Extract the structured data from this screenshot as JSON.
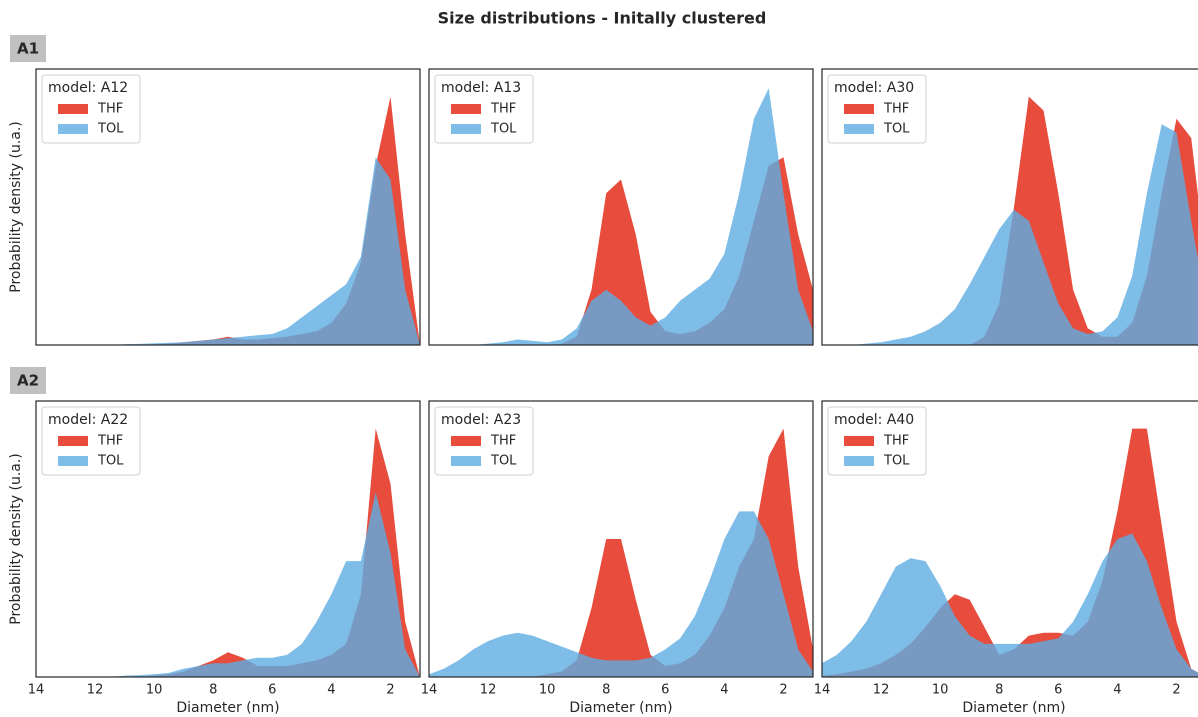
{
  "title": "Size distributions - Initally clustered",
  "groups": [
    "A1",
    "A2"
  ],
  "chart_data": [
    {
      "type": "area",
      "title": "model: A12",
      "ylabel": "Probability density (u.a.)",
      "xlim": [
        14,
        1
      ],
      "ylim": [
        0,
        1
      ],
      "x": [
        14,
        13.5,
        13,
        12.5,
        12,
        11.5,
        11,
        10.5,
        10,
        9.5,
        9,
        8.5,
        8,
        7.5,
        7,
        6.5,
        6,
        5.5,
        5,
        4.5,
        4,
        3.5,
        3,
        2.5,
        2,
        1.5,
        1
      ],
      "series": [
        {
          "name": "THF",
          "color": "#e74c3c",
          "values": [
            0,
            0,
            0,
            0,
            0,
            0,
            0,
            0,
            0.002,
            0.005,
            0.01,
            0.015,
            0.02,
            0.03,
            0.02,
            0.02,
            0.025,
            0.03,
            0.04,
            0.05,
            0.08,
            0.15,
            0.3,
            0.65,
            0.9,
            0.4,
            0
          ]
        },
        {
          "name": "TOL",
          "color": "#5dade2",
          "values": [
            0,
            0,
            0,
            0,
            0,
            0,
            0.003,
            0.004,
            0.006,
            0.008,
            0.01,
            0.015,
            0.02,
            0.025,
            0.03,
            0.035,
            0.04,
            0.06,
            0.1,
            0.14,
            0.18,
            0.22,
            0.32,
            0.68,
            0.6,
            0.2,
            0
          ]
        }
      ]
    },
    {
      "type": "area",
      "title": "model: A13",
      "xlim": [
        14,
        1
      ],
      "ylim": [
        0,
        1
      ],
      "x": [
        14,
        13.5,
        13,
        12.5,
        12,
        11.5,
        11,
        10.5,
        10,
        9.5,
        9,
        8.5,
        8,
        7.5,
        7,
        6.5,
        6,
        5.5,
        5,
        4.5,
        4,
        3.5,
        3,
        2.5,
        2,
        1.5,
        1
      ],
      "series": [
        {
          "name": "THF",
          "color": "#e74c3c",
          "values": [
            0,
            0,
            0,
            0,
            0,
            0,
            0,
            0,
            0,
            0.005,
            0.03,
            0.2,
            0.55,
            0.6,
            0.4,
            0.12,
            0.05,
            0.04,
            0.05,
            0.08,
            0.13,
            0.25,
            0.45,
            0.65,
            0.68,
            0.4,
            0.2
          ]
        },
        {
          "name": "TOL",
          "color": "#5dade2",
          "values": [
            0,
            0,
            0,
            0,
            0.005,
            0.01,
            0.02,
            0.015,
            0.01,
            0.02,
            0.06,
            0.16,
            0.2,
            0.16,
            0.1,
            0.07,
            0.1,
            0.16,
            0.2,
            0.24,
            0.33,
            0.55,
            0.82,
            0.93,
            0.55,
            0.2,
            0.05
          ]
        }
      ]
    },
    {
      "type": "area",
      "title": "model: A30",
      "xlim": [
        14,
        1
      ],
      "ylim": [
        0,
        1
      ],
      "x": [
        14,
        13.5,
        13,
        12.5,
        12,
        11.5,
        11,
        10.5,
        10,
        9.5,
        9,
        8.5,
        8,
        7.5,
        7,
        6.5,
        6,
        5.5,
        5,
        4.5,
        4,
        3.5,
        3,
        2.5,
        2,
        1.5,
        1
      ],
      "series": [
        {
          "name": "THF",
          "color": "#e74c3c",
          "values": [
            0,
            0,
            0,
            0,
            0,
            0,
            0,
            0,
            0,
            0,
            0,
            0.03,
            0.15,
            0.5,
            0.9,
            0.85,
            0.55,
            0.2,
            0.06,
            0.03,
            0.03,
            0.08,
            0.25,
            0.55,
            0.82,
            0.75,
            0.3
          ]
        },
        {
          "name": "TOL",
          "color": "#5dade2",
          "values": [
            0,
            0,
            0,
            0.005,
            0.01,
            0.02,
            0.03,
            0.05,
            0.08,
            0.13,
            0.22,
            0.32,
            0.42,
            0.49,
            0.45,
            0.3,
            0.15,
            0.06,
            0.04,
            0.05,
            0.1,
            0.25,
            0.55,
            0.8,
            0.77,
            0.45,
            0.15
          ]
        }
      ]
    },
    {
      "type": "area",
      "title": "model: A22",
      "ylabel": "Probability density (u.a.)",
      "xlabel": "Diameter (nm)",
      "xlim": [
        14,
        1
      ],
      "ylim": [
        0,
        1
      ],
      "xticks": [
        14,
        12,
        10,
        8,
        6,
        4,
        2
      ],
      "x": [
        14,
        13.5,
        13,
        12.5,
        12,
        11.5,
        11,
        10.5,
        10,
        9.5,
        9,
        8.5,
        8,
        7.5,
        7,
        6.5,
        6,
        5.5,
        5,
        4.5,
        4,
        3.5,
        3,
        2.5,
        2,
        1.5,
        1
      ],
      "series": [
        {
          "name": "THF",
          "color": "#e74c3c",
          "values": [
            0,
            0,
            0,
            0,
            0,
            0,
            0,
            0,
            0.005,
            0.01,
            0.02,
            0.04,
            0.06,
            0.09,
            0.07,
            0.04,
            0.04,
            0.04,
            0.05,
            0.06,
            0.08,
            0.12,
            0.3,
            0.9,
            0.7,
            0.2,
            0
          ]
        },
        {
          "name": "TOL",
          "color": "#5dade2",
          "values": [
            0,
            0,
            0,
            0,
            0,
            0,
            0.005,
            0.007,
            0.01,
            0.015,
            0.03,
            0.04,
            0.05,
            0.05,
            0.06,
            0.07,
            0.07,
            0.08,
            0.12,
            0.2,
            0.3,
            0.42,
            0.42,
            0.67,
            0.45,
            0.1,
            0
          ]
        }
      ]
    },
    {
      "type": "area",
      "title": "model: A23",
      "xlabel": "Diameter (nm)",
      "xlim": [
        14,
        1
      ],
      "ylim": [
        0,
        1
      ],
      "xticks": [
        14,
        12,
        10,
        8,
        6,
        4,
        2
      ],
      "x": [
        14,
        13.5,
        13,
        12.5,
        12,
        11.5,
        11,
        10.5,
        10,
        9.5,
        9,
        8.5,
        8,
        7.5,
        7,
        6.5,
        6,
        5.5,
        5,
        4.5,
        4,
        3.5,
        3,
        2.5,
        2,
        1.5,
        1
      ],
      "series": [
        {
          "name": "THF",
          "color": "#e74c3c",
          "values": [
            0,
            0,
            0,
            0,
            0,
            0,
            0,
            0,
            0.01,
            0.02,
            0.06,
            0.25,
            0.5,
            0.5,
            0.28,
            0.08,
            0.04,
            0.05,
            0.08,
            0.15,
            0.25,
            0.4,
            0.5,
            0.8,
            0.9,
            0.4,
            0.1
          ]
        },
        {
          "name": "TOL",
          "color": "#5dade2",
          "values": [
            0.01,
            0.03,
            0.06,
            0.1,
            0.13,
            0.15,
            0.16,
            0.15,
            0.13,
            0.11,
            0.09,
            0.07,
            0.06,
            0.06,
            0.06,
            0.07,
            0.1,
            0.14,
            0.22,
            0.35,
            0.5,
            0.6,
            0.6,
            0.5,
            0.3,
            0.1,
            0.02
          ]
        }
      ]
    },
    {
      "type": "area",
      "title": "model: A40",
      "xlabel": "Diameter (nm)",
      "xlim": [
        14,
        1
      ],
      "ylim": [
        0,
        1
      ],
      "xticks": [
        14,
        12,
        10,
        8,
        6,
        4,
        2
      ],
      "x": [
        14,
        13.5,
        13,
        12.5,
        12,
        11.5,
        11,
        10.5,
        10,
        9.5,
        9,
        8.5,
        8,
        7.5,
        7,
        6.5,
        6,
        5.5,
        5,
        4.5,
        4,
        3.5,
        3,
        2.5,
        2,
        1.5,
        1
      ],
      "series": [
        {
          "name": "THF",
          "color": "#e74c3c",
          "values": [
            0.005,
            0.01,
            0.02,
            0.03,
            0.05,
            0.08,
            0.12,
            0.18,
            0.25,
            0.3,
            0.28,
            0.18,
            0.08,
            0.1,
            0.15,
            0.16,
            0.16,
            0.15,
            0.2,
            0.35,
            0.6,
            0.9,
            0.9,
            0.55,
            0.2,
            0.03,
            0
          ]
        },
        {
          "name": "TOL",
          "color": "#5dade2",
          "values": [
            0.05,
            0.08,
            0.13,
            0.2,
            0.3,
            0.4,
            0.43,
            0.42,
            0.33,
            0.22,
            0.15,
            0.12,
            0.12,
            0.12,
            0.12,
            0.13,
            0.14,
            0.2,
            0.3,
            0.42,
            0.5,
            0.52,
            0.42,
            0.25,
            0.1,
            0.03,
            0
          ]
        }
      ]
    }
  ]
}
